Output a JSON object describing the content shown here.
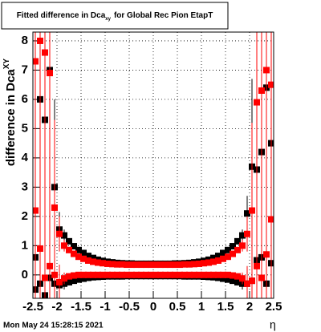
{
  "chart_data": {
    "type": "scatter",
    "title": {
      "text": "Fitted difference in Dca",
      "subscript": "xy",
      "rest": "for Global Rec Pion EtapT"
    },
    "ylabel": {
      "text": "difference in Dca",
      "subscript": "XY"
    },
    "xlabel": "η",
    "date": "Mon May 24 15:28:15 2021",
    "xlim": [
      -2.5,
      2.5
    ],
    "ylim": [
      -0.8,
      8.3
    ],
    "xticks": [
      -2.5,
      -2,
      -1.5,
      -1,
      -0.5,
      0,
      0.5,
      1,
      1.5,
      2,
      2.5
    ],
    "yticks": [
      0,
      1,
      2,
      3,
      4,
      5,
      6,
      7,
      8
    ],
    "grid": true,
    "x": [
      -2.45,
      -2.35,
      -2.25,
      -2.15,
      -2.05,
      -1.95,
      -1.85,
      -1.75,
      -1.65,
      -1.55,
      -1.45,
      -1.35,
      -1.25,
      -1.15,
      -1.05,
      -0.95,
      -0.85,
      -0.75,
      -0.65,
      -0.55,
      -0.45,
      -0.35,
      -0.25,
      -0.15,
      -0.05,
      0.05,
      0.15,
      0.25,
      0.35,
      0.45,
      0.55,
      0.65,
      0.75,
      0.85,
      0.95,
      1.05,
      1.15,
      1.25,
      1.35,
      1.45,
      1.55,
      1.65,
      1.75,
      1.85,
      1.95,
      2.05,
      2.15,
      2.25,
      2.35,
      2.45
    ],
    "series": [
      {
        "color": "#000000",
        "values": [
          0.6,
          6.0,
          5.3,
          7.0,
          3.0,
          1.55,
          1.35,
          1.15,
          0.98,
          0.85,
          0.75,
          0.65,
          0.58,
          0.52,
          0.48,
          0.45,
          0.43,
          0.41,
          0.4,
          0.39,
          0.39,
          0.38,
          0.38,
          0.38,
          0.38,
          0.38,
          0.38,
          0.38,
          0.38,
          0.39,
          0.39,
          0.4,
          0.41,
          0.43,
          0.45,
          0.48,
          0.52,
          0.58,
          0.65,
          0.75,
          0.85,
          0.98,
          1.15,
          1.35,
          2.1,
          3.7,
          3.6,
          4.2,
          6.4,
          4.5
        ],
        "errors": [
          8,
          8,
          8,
          6,
          3,
          0.6,
          0.2,
          0.1,
          0.06,
          0.05,
          0.04,
          0.04,
          0.03,
          0.03,
          0.03,
          0.03,
          0.03,
          0.03,
          0.03,
          0.03,
          0.03,
          0.03,
          0.03,
          0.03,
          0.03,
          0.03,
          0.03,
          0.03,
          0.03,
          0.03,
          0.03,
          0.03,
          0.03,
          0.03,
          0.03,
          0.03,
          0.03,
          0.03,
          0.04,
          0.04,
          0.05,
          0.06,
          0.1,
          0.2,
          0.6,
          3,
          6,
          8,
          8,
          8
        ]
      },
      {
        "color": "#000000",
        "values": [
          -0.5,
          -0.3,
          -0.7,
          -0.1,
          -0.3,
          -0.35,
          -0.3,
          -0.25,
          -0.2,
          -0.16,
          -0.13,
          -0.1,
          -0.08,
          -0.07,
          -0.06,
          -0.05,
          -0.05,
          -0.05,
          -0.05,
          -0.04,
          -0.04,
          -0.04,
          -0.04,
          -0.04,
          -0.04,
          -0.04,
          -0.04,
          -0.04,
          -0.04,
          -0.04,
          -0.04,
          -0.05,
          -0.05,
          -0.05,
          -0.05,
          -0.06,
          -0.07,
          -0.08,
          -0.1,
          -0.13,
          -0.16,
          -0.2,
          -0.25,
          -0.3,
          -0.3,
          -0.2,
          0.5,
          0.6,
          -0.3,
          0.4
        ],
        "errors": [
          8,
          8,
          8,
          6,
          3,
          0.6,
          0.2,
          0.1,
          0.06,
          0.05,
          0.04,
          0.04,
          0.03,
          0.03,
          0.03,
          0.03,
          0.03,
          0.03,
          0.03,
          0.03,
          0.03,
          0.03,
          0.03,
          0.03,
          0.03,
          0.03,
          0.03,
          0.03,
          0.03,
          0.03,
          0.03,
          0.03,
          0.03,
          0.03,
          0.03,
          0.03,
          0.03,
          0.03,
          0.04,
          0.04,
          0.05,
          0.06,
          0.1,
          0.2,
          0.6,
          3,
          6,
          8,
          8,
          8
        ]
      },
      {
        "color": "#ff0000",
        "values": [
          7.3,
          8.0,
          7.6,
          6.9,
          2.3,
          1.4,
          1.0,
          0.85,
          0.72,
          0.62,
          0.55,
          0.49,
          0.45,
          0.42,
          0.4,
          0.38,
          0.37,
          0.36,
          0.36,
          0.35,
          0.35,
          0.35,
          0.35,
          0.35,
          0.35,
          0.35,
          0.35,
          0.35,
          0.35,
          0.35,
          0.35,
          0.36,
          0.36,
          0.37,
          0.38,
          0.4,
          0.42,
          0.45,
          0.49,
          0.55,
          0.62,
          0.72,
          0.85,
          1.0,
          1.4,
          2.2,
          5.9,
          6.3,
          7.0,
          6.5
        ],
        "errors": [
          8,
          8,
          8,
          6,
          3,
          0.6,
          0.2,
          0.1,
          0.06,
          0.05,
          0.04,
          0.04,
          0.03,
          0.03,
          0.03,
          0.03,
          0.03,
          0.03,
          0.03,
          0.03,
          0.03,
          0.03,
          0.03,
          0.03,
          0.03,
          0.03,
          0.03,
          0.03,
          0.03,
          0.03,
          0.03,
          0.03,
          0.03,
          0.03,
          0.03,
          0.03,
          0.03,
          0.03,
          0.04,
          0.04,
          0.05,
          0.06,
          0.1,
          0.2,
          0.6,
          3,
          6,
          8,
          8,
          8
        ]
      },
      {
        "color": "#ff0000",
        "values": [
          2.2,
          0.9,
          -0.1,
          0.3,
          0.0,
          -0.25,
          -0.12,
          -0.05,
          -0.02,
          0.0,
          0.0,
          0.0,
          0.0,
          0.0,
          0.0,
          0.0,
          0.0,
          0.0,
          0.0,
          0.0,
          0.0,
          0.0,
          0.0,
          0.0,
          0.0,
          0.0,
          0.0,
          0.0,
          0.0,
          0.0,
          0.0,
          0.0,
          0.0,
          0.0,
          0.0,
          0.0,
          0.0,
          0.0,
          0.0,
          0.0,
          0.0,
          -0.02,
          -0.05,
          -0.12,
          -0.3,
          -0.2,
          0.3,
          -0.1,
          0.7,
          1.9
        ],
        "errors": [
          8,
          8,
          8,
          6,
          3,
          0.6,
          0.2,
          0.1,
          0.06,
          0.05,
          0.04,
          0.04,
          0.03,
          0.03,
          0.03,
          0.03,
          0.03,
          0.03,
          0.03,
          0.03,
          0.03,
          0.03,
          0.03,
          0.03,
          0.03,
          0.03,
          0.03,
          0.03,
          0.03,
          0.03,
          0.03,
          0.03,
          0.03,
          0.03,
          0.03,
          0.03,
          0.03,
          0.03,
          0.04,
          0.04,
          0.05,
          0.06,
          0.1,
          0.2,
          0.6,
          3,
          6,
          8,
          8,
          8
        ]
      }
    ]
  }
}
